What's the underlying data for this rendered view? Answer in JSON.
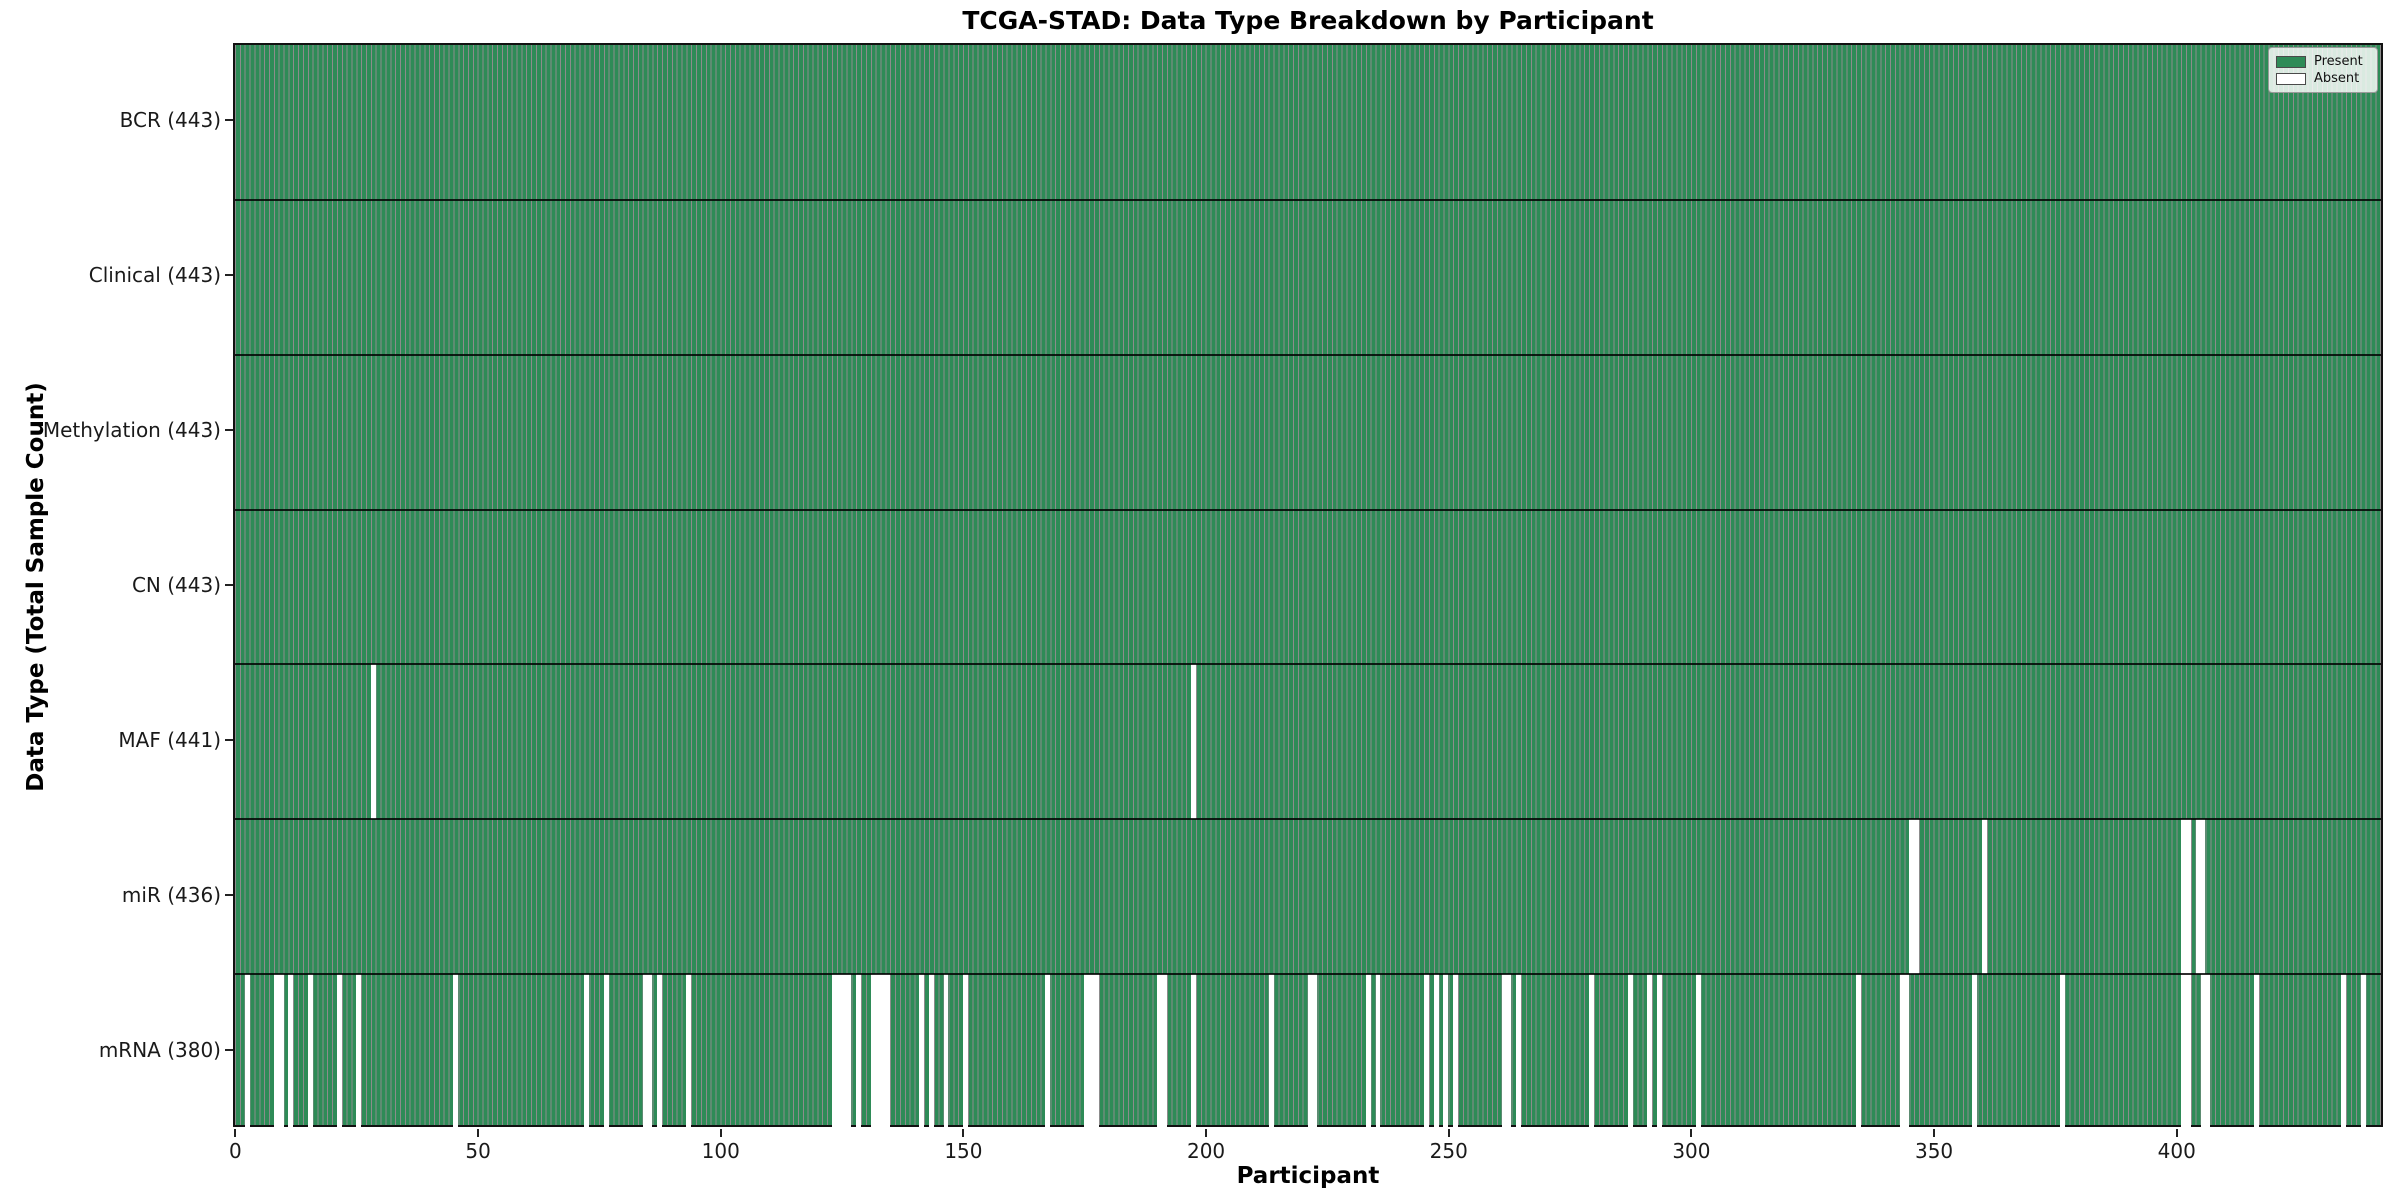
{
  "title": "TCGA-STAD: Data Type Breakdown by Participant",
  "xlabel": "Participant",
  "ylabel": "Data Type (Total Sample Count)",
  "legend": {
    "present_label": "Present",
    "absent_label": "Absent"
  },
  "colors": {
    "present": "#2e8b57",
    "absent": "#ffffff",
    "cell_edge": "rgba(0,0,0,0.45)",
    "row_separator": "rgba(0,0,0,0.82)",
    "spine": "#111111"
  },
  "chart_data": {
    "type": "heatmap",
    "title": "TCGA-STAD: Data Type Breakdown by Participant",
    "xlabel": "Participant",
    "ylabel": "Data Type (Total Sample Count)",
    "legend_entries": [
      "Present",
      "Absent"
    ],
    "legend_position": "upper right",
    "n_participants": 443,
    "x_ticks": [
      0,
      50,
      100,
      150,
      200,
      250,
      300,
      350,
      400
    ],
    "x_range": [
      0,
      442
    ],
    "cell_values": "1 = Present (green), 0 = Absent (white)",
    "rows": [
      {
        "label": "BCR",
        "display_label": "BCR (443)",
        "present_count": 443,
        "absent_participants": []
      },
      {
        "label": "Clinical",
        "display_label": "Clinical (443)",
        "present_count": 443,
        "absent_participants": []
      },
      {
        "label": "Methylation",
        "display_label": "Methylation (443)",
        "present_count": 443,
        "absent_participants": []
      },
      {
        "label": "CN",
        "display_label": "CN (443)",
        "present_count": 443,
        "absent_participants": []
      },
      {
        "label": "MAF",
        "display_label": "MAF (441)",
        "present_count": 441,
        "absent_participants": [
          28,
          197
        ]
      },
      {
        "label": "miR",
        "display_label": "miR (436)",
        "present_count": 436,
        "absent_participants": [
          345,
          346,
          360,
          401,
          402,
          404,
          405
        ]
      },
      {
        "label": "mRNA",
        "display_label": "mRNA (380)",
        "present_count": 380,
        "absent_participants": [
          2,
          8,
          9,
          11,
          15,
          21,
          25,
          45,
          72,
          76,
          84,
          85,
          87,
          93,
          123,
          124,
          125,
          126,
          128,
          131,
          132,
          133,
          134,
          141,
          143,
          146,
          150,
          167,
          175,
          176,
          177,
          190,
          191,
          197,
          213,
          221,
          222,
          233,
          235,
          245,
          247,
          249,
          251,
          261,
          262,
          264,
          279,
          287,
          291,
          293,
          301,
          334,
          343,
          344,
          358,
          376,
          401,
          402,
          405,
          406,
          416,
          434,
          438
        ]
      }
    ]
  }
}
